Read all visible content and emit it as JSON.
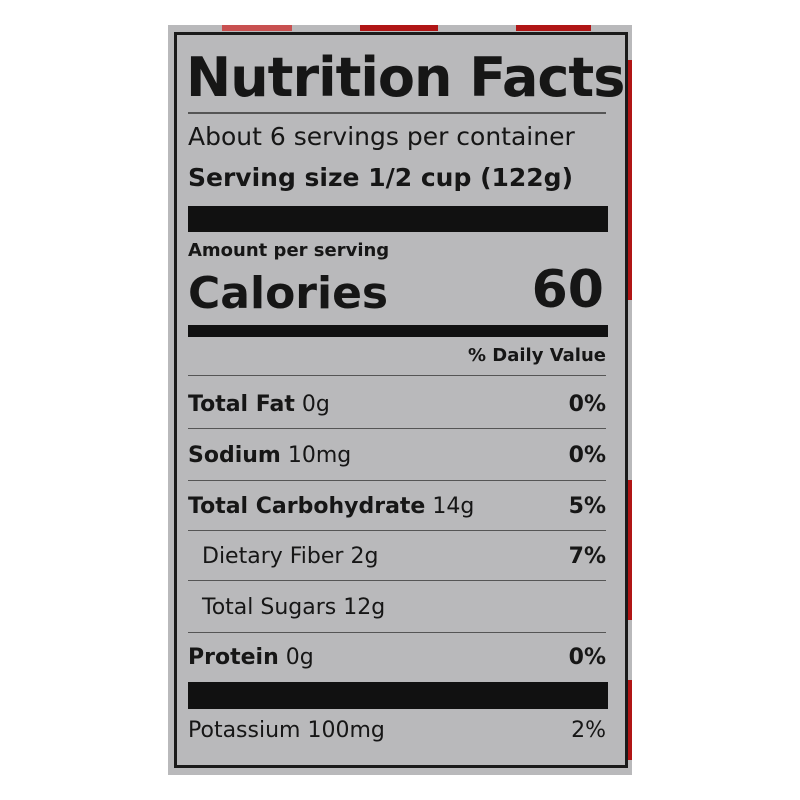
{
  "title": "Nutrition Facts",
  "servings_per_container": "About 6 servings per container",
  "serving_size_label": "Serving size",
  "serving_size_value": "1/2 cup (122g)",
  "amount_per_serving": "Amount per serving",
  "calories_label": "Calories",
  "calories_value": "60",
  "daily_value_header": "% Daily Value",
  "nutrients": [
    {
      "name": "Total Fat",
      "amount": "0g",
      "dv": "0%"
    },
    {
      "name": "Sodium",
      "amount": "10mg",
      "dv": "0%"
    },
    {
      "name": "Total Carbohydrate",
      "amount": "14g",
      "dv": "5%"
    },
    {
      "name": "Dietary Fiber",
      "amount": "2g",
      "dv": "7%"
    },
    {
      "name": "Total Sugars",
      "amount": "12g",
      "dv": ""
    },
    {
      "name": "Protein",
      "amount": "0g",
      "dv": "0%"
    }
  ],
  "potassium": {
    "name": "Potassium",
    "amount": "100mg",
    "dv": "2%"
  },
  "colors": {
    "label_bg": "#b9b9bb",
    "ink": "#161616",
    "stripe": "#b01515"
  }
}
